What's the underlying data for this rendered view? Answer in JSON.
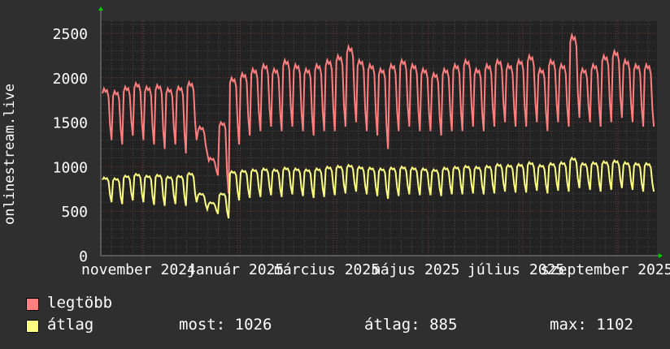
{
  "chart_data": {
    "type": "line",
    "ylabel": "onlinestream.live",
    "ylim": [
      0,
      2600
    ],
    "yticks": [
      0,
      500,
      1000,
      1500,
      2000,
      2500
    ],
    "xticks": [
      "november 2024",
      "január 2025",
      "március 2025",
      "május 2025",
      "július 2025",
      "szeptember 2025"
    ],
    "grid": true,
    "legend_placement": "bottom-left",
    "series": [
      {
        "name": "legtöbb",
        "color": "#ff7f7f",
        "weekly_peak": [
          1880,
          1850,
          1900,
          1940,
          1900,
          1920,
          1880,
          1900,
          1950,
          1450,
          1100,
          1500,
          2000,
          2050,
          2100,
          2150,
          2100,
          2200,
          2150,
          2100,
          2150,
          2200,
          2250,
          2350,
          2200,
          2150,
          2100,
          2150,
          2200,
          2150,
          2100,
          2050,
          2100,
          2150,
          2200,
          2100,
          2150,
          2200,
          2150,
          2200,
          2250,
          2100,
          2200,
          2150,
          2480,
          2100,
          2150,
          2250,
          2300,
          2200,
          2150,
          2150
        ],
        "weekly_trough": [
          1300,
          1250,
          1350,
          1300,
          1250,
          1200,
          1250,
          1150,
          1300,
          1150,
          900,
          700,
          1250,
          1350,
          1400,
          1450,
          1400,
          1450,
          1400,
          1350,
          1400,
          1400,
          1450,
          1500,
          1400,
          1350,
          1200,
          1400,
          1450,
          1400,
          1400,
          1350,
          1400,
          1400,
          1450,
          1400,
          1450,
          1500,
          1450,
          1450,
          1500,
          1400,
          1500,
          1450,
          1550,
          1500,
          1450,
          1500,
          1550,
          1500,
          1450,
          1450
        ]
      },
      {
        "name": "átlag",
        "color": "#ffff7f",
        "weekly_peak": [
          880,
          870,
          900,
          920,
          900,
          910,
          890,
          900,
          930,
          700,
          600,
          700,
          950,
          960,
          970,
          980,
          970,
          990,
          980,
          970,
          980,
          1000,
          1010,
          1020,
          1000,
          990,
          980,
          990,
          1000,
          990,
          980,
          970,
          990,
          1000,
          1010,
          1000,
          1010,
          1030,
          1020,
          1030,
          1050,
          1020,
          1040,
          1050,
          1100,
          1040,
          1050,
          1060,
          1070,
          1050,
          1040,
          1040
        ],
        "weekly_trough": [
          600,
          580,
          620,
          600,
          570,
          560,
          580,
          560,
          600,
          520,
          470,
          420,
          620,
          650,
          660,
          680,
          660,
          690,
          670,
          650,
          660,
          680,
          700,
          720,
          690,
          670,
          640,
          670,
          690,
          680,
          680,
          670,
          690,
          690,
          700,
          690,
          700,
          720,
          710,
          710,
          730,
          700,
          730,
          720,
          760,
          740,
          720,
          740,
          760,
          740,
          720,
          720
        ]
      }
    ]
  },
  "legend": {
    "max_label": "legtöbb",
    "avg_label": "átlag",
    "now": "most: 1026",
    "average": "átlag: 885",
    "maximum": "max: 1102"
  }
}
